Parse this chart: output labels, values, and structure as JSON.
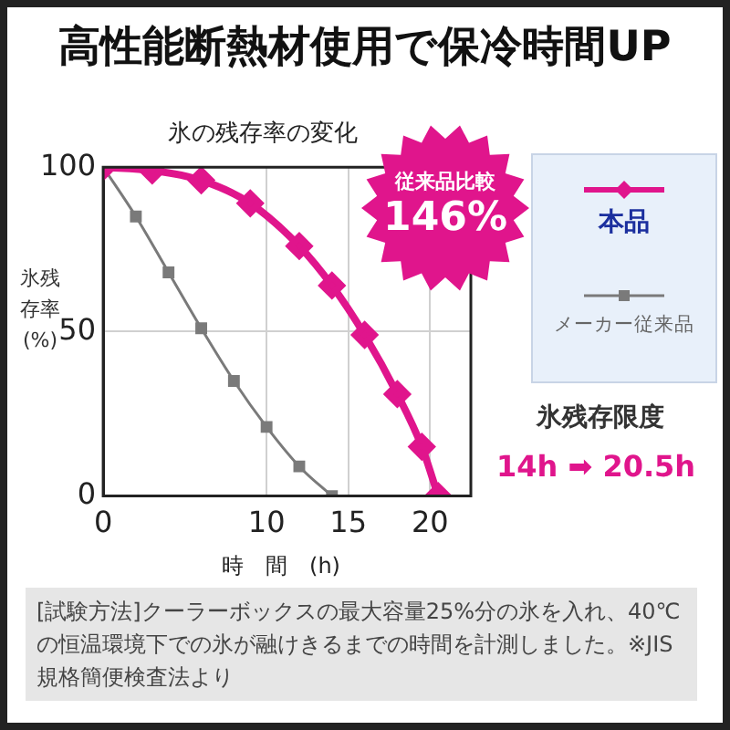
{
  "chart_data": {
    "type": "line",
    "title": "高性能断熱材使用で保冷時間UP",
    "subtitle": "氷の残存率の変化",
    "xlabel": "時　間　(h)",
    "ylabel": "氷残存率(%)",
    "series": [
      {
        "name": "本品",
        "color": "#e0158c",
        "marker": "diamond",
        "x": [
          0,
          3,
          6,
          9,
          12,
          14,
          16,
          18,
          19.5,
          20.5
        ],
        "values": [
          100,
          99,
          96,
          89,
          76,
          64,
          49,
          31,
          15,
          0
        ]
      },
      {
        "name": "メーカー従来品",
        "color": "#7a7a7a",
        "marker": "square",
        "x": [
          0,
          2,
          4,
          6,
          8,
          10,
          12,
          14
        ],
        "values": [
          100,
          85,
          68,
          51,
          35,
          21,
          9,
          0
        ]
      }
    ],
    "xlim": [
      0,
      22.5
    ],
    "xticks": [
      0,
      10,
      15,
      20
    ],
    "ylim": [
      0,
      100
    ],
    "yticks": [
      0,
      50,
      100
    ],
    "grid": true,
    "legend": "right",
    "line_style": "solid",
    "annotations": [
      "従来品比較",
      "146%",
      "氷残存限度",
      "14h ➡ 20.5h",
      "[試験方法]クーラーボックスの最大容量25%分の氷を入れ、40℃の恒温環境下での氷が融けきるまでの時間を計測しました。※JIS規格簡便検査法より"
    ]
  }
}
